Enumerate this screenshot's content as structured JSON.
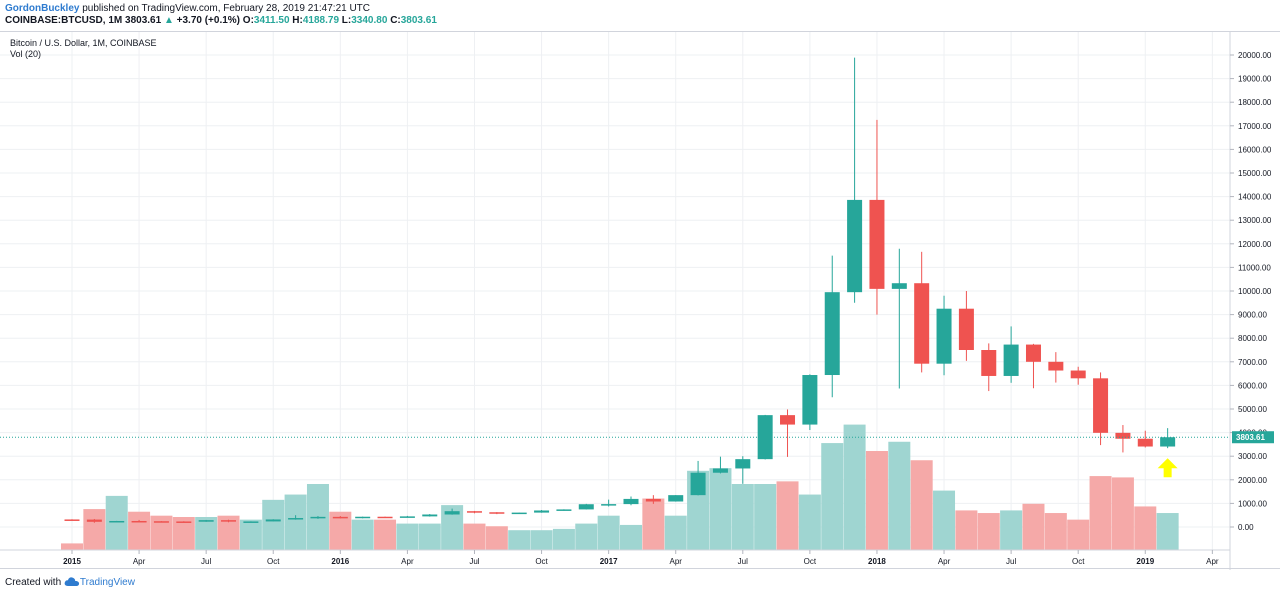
{
  "header": {
    "author": "GordonBuckley",
    "published_text": " published on TradingView.com, February 28, 2019 21:47:21 UTC",
    "symbol": "COINBASE:BTCUSD, 1M",
    "last": "3803.61",
    "change_arrow": "▲",
    "change": "+3.70 (+0.1%)",
    "o_label": "O:",
    "o_value": "3411.50",
    "h_label": "H:",
    "h_value": "4188.79",
    "l_label": "L:",
    "l_value": "3340.80",
    "c_label": "C:",
    "c_value": "3803.61"
  },
  "legend": {
    "title": "Bitcoin / U.S. Dollar, 1M, COINBASE",
    "vol": "Vol (20)"
  },
  "footer": {
    "created_with": "Created with",
    "brand": "TradingView",
    "logo_icon": "tradingview-cloud-icon"
  },
  "colors": {
    "up": "#26a69a",
    "down": "#ef5350",
    "vol_up": "#9fd5d1",
    "vol_down": "#f5a9a8",
    "grid": "#eef0f3",
    "price_line": "#26a69a",
    "arrow": "#ffff00"
  },
  "chart_data": {
    "type": "candlestick",
    "title": "Bitcoin / U.S. Dollar, 1M, COINBASE",
    "interval": "1M",
    "last_price_label": "3803.61",
    "y_ticks": [
      "0.00",
      "1000.00",
      "2000.00",
      "3000.00",
      "4000.00",
      "5000.00",
      "6000.00",
      "7000.00",
      "8000.00",
      "9000.00",
      "10000.00",
      "11000.00",
      "12000.00",
      "13000.00",
      "14000.00",
      "15000.00",
      "16000.00",
      "17000.00",
      "18000.00",
      "19000.00",
      "20000.00"
    ],
    "ylim": [
      -1000,
      20500
    ],
    "x_ticks": [
      {
        "label": "2015",
        "index": 0,
        "bold": true
      },
      {
        "label": "Apr",
        "index": 3,
        "bold": false
      },
      {
        "label": "Jul",
        "index": 6,
        "bold": false
      },
      {
        "label": "Oct",
        "index": 9,
        "bold": false
      },
      {
        "label": "2016",
        "index": 12,
        "bold": true
      },
      {
        "label": "Apr",
        "index": 15,
        "bold": false
      },
      {
        "label": "Jul",
        "index": 18,
        "bold": false
      },
      {
        "label": "Oct",
        "index": 21,
        "bold": false
      },
      {
        "label": "2017",
        "index": 24,
        "bold": true
      },
      {
        "label": "Apr",
        "index": 27,
        "bold": false
      },
      {
        "label": "Jul",
        "index": 30,
        "bold": false
      },
      {
        "label": "Oct",
        "index": 33,
        "bold": false
      },
      {
        "label": "2018",
        "index": 36,
        "bold": true
      },
      {
        "label": "Apr",
        "index": 39,
        "bold": false
      },
      {
        "label": "Jul",
        "index": 42,
        "bold": false
      },
      {
        "label": "Oct",
        "index": 45,
        "bold": false
      },
      {
        "label": "2019",
        "index": 48,
        "bold": true
      },
      {
        "label": "Apr",
        "index": 51,
        "bold": false
      }
    ],
    "candles": [
      {
        "o": 320,
        "h": 330,
        "l": 280,
        "c": 315
      },
      {
        "o": 315,
        "h": 340,
        "l": 180,
        "c": 220
      },
      {
        "o": 220,
        "h": 260,
        "l": 210,
        "c": 255
      },
      {
        "o": 255,
        "h": 300,
        "l": 230,
        "c": 245
      },
      {
        "o": 245,
        "h": 250,
        "l": 215,
        "c": 235
      },
      {
        "o": 235,
        "h": 245,
        "l": 220,
        "c": 225
      },
      {
        "o": 225,
        "h": 300,
        "l": 220,
        "c": 290
      },
      {
        "o": 290,
        "h": 310,
        "l": 200,
        "c": 230
      },
      {
        "o": 230,
        "h": 240,
        "l": 225,
        "c": 236
      },
      {
        "o": 236,
        "h": 330,
        "l": 235,
        "c": 320
      },
      {
        "o": 320,
        "h": 500,
        "l": 310,
        "c": 380
      },
      {
        "o": 380,
        "h": 465,
        "l": 345,
        "c": 430
      },
      {
        "o": 430,
        "h": 465,
        "l": 360,
        "c": 370
      },
      {
        "o": 370,
        "h": 440,
        "l": 365,
        "c": 435
      },
      {
        "o": 435,
        "h": 440,
        "l": 400,
        "c": 415
      },
      {
        "o": 415,
        "h": 470,
        "l": 410,
        "c": 450
      },
      {
        "o": 450,
        "h": 550,
        "l": 440,
        "c": 530
      },
      {
        "o": 530,
        "h": 780,
        "l": 520,
        "c": 670
      },
      {
        "o": 670,
        "h": 680,
        "l": 580,
        "c": 625
      },
      {
        "o": 625,
        "h": 630,
        "l": 545,
        "c": 575
      },
      {
        "o": 575,
        "h": 610,
        "l": 570,
        "c": 610
      },
      {
        "o": 610,
        "h": 720,
        "l": 605,
        "c": 700
      },
      {
        "o": 700,
        "h": 750,
        "l": 690,
        "c": 745
      },
      {
        "o": 745,
        "h": 980,
        "l": 740,
        "c": 965
      },
      {
        "o": 965,
        "h": 1160,
        "l": 870,
        "c": 970
      },
      {
        "o": 970,
        "h": 1290,
        "l": 920,
        "c": 1190
      },
      {
        "o": 1190,
        "h": 1350,
        "l": 980,
        "c": 1080
      },
      {
        "o": 1080,
        "h": 1350,
        "l": 1075,
        "c": 1350
      },
      {
        "o": 1350,
        "h": 2800,
        "l": 1340,
        "c": 2300
      },
      {
        "o": 2300,
        "h": 2980,
        "l": 2270,
        "c": 2480
      },
      {
        "o": 2480,
        "h": 3000,
        "l": 1830,
        "c": 2875
      },
      {
        "o": 2875,
        "h": 4750,
        "l": 2860,
        "c": 4740
      },
      {
        "o": 4740,
        "h": 4980,
        "l": 2970,
        "c": 4340
      },
      {
        "o": 4340,
        "h": 6470,
        "l": 4110,
        "c": 6440
      },
      {
        "o": 6440,
        "h": 11500,
        "l": 5500,
        "c": 9950
      },
      {
        "o": 9950,
        "h": 19890,
        "l": 9500,
        "c": 13860
      },
      {
        "o": 13860,
        "h": 17250,
        "l": 9000,
        "c": 10090
      },
      {
        "o": 10090,
        "h": 11790,
        "l": 5870,
        "c": 10330
      },
      {
        "o": 10330,
        "h": 11660,
        "l": 6550,
        "c": 6920
      },
      {
        "o": 6920,
        "h": 9800,
        "l": 6430,
        "c": 9250
      },
      {
        "o": 9250,
        "h": 10000,
        "l": 7040,
        "c": 7500
      },
      {
        "o": 7500,
        "h": 7780,
        "l": 5760,
        "c": 6400
      },
      {
        "o": 6400,
        "h": 8500,
        "l": 6110,
        "c": 7730
      },
      {
        "o": 7730,
        "h": 7760,
        "l": 5880,
        "c": 7000
      },
      {
        "o": 7000,
        "h": 7410,
        "l": 6120,
        "c": 6630
      },
      {
        "o": 6630,
        "h": 6790,
        "l": 6030,
        "c": 6300
      },
      {
        "o": 6300,
        "h": 6550,
        "l": 3470,
        "c": 3990
      },
      {
        "o": 3990,
        "h": 4320,
        "l": 3160,
        "c": 3740
      },
      {
        "o": 3740,
        "h": 4080,
        "l": 3370,
        "c": 3410
      },
      {
        "o": 3410,
        "h": 4189,
        "l": 3341,
        "c": 3804
      }
    ],
    "volume": {
      "unit": "relative",
      "values": [
        0.5,
        3.1,
        4.1,
        2.9,
        2.6,
        2.5,
        2.5,
        2.6,
        2.3,
        3.8,
        4.2,
        5.0,
        2.9,
        2.3,
        2.3,
        2.0,
        2.0,
        3.4,
        2.0,
        1.8,
        1.5,
        1.5,
        1.6,
        2.0,
        2.6,
        1.9,
        3.9,
        2.6,
        6.0,
        6.2,
        5.0,
        5.0,
        5.2,
        4.2,
        8.1,
        9.5,
        7.5,
        8.2,
        6.8,
        4.5,
        3.0,
        2.8,
        3.0,
        3.5,
        2.8,
        2.3,
        5.6,
        5.5,
        3.3,
        2.8
      ]
    }
  }
}
